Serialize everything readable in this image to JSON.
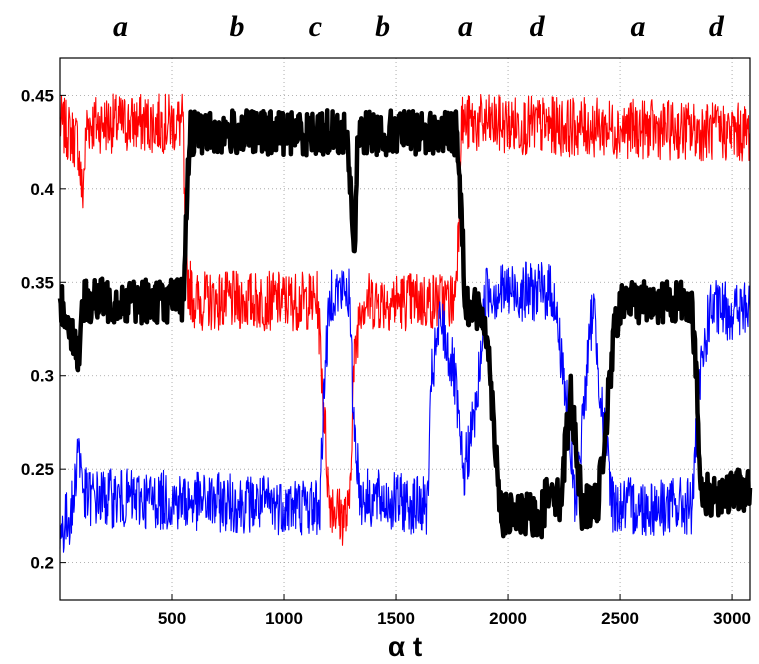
{
  "chart_data": {
    "type": "line",
    "title": "",
    "xlabel": "α t",
    "ylabel": "",
    "xlim": [
      0,
      3080
    ],
    "ylim": [
      0.18,
      0.47
    ],
    "grid": true,
    "x_ticks": [
      500,
      1000,
      1500,
      2000,
      2500,
      3000
    ],
    "y_ticks": [
      0.2,
      0.25,
      0.3,
      0.35,
      0.4,
      0.45
    ],
    "x_tick_labels": [
      "500",
      "1000",
      "1500",
      "2000",
      "2500",
      "3000"
    ],
    "y_tick_labels": [
      "0.2",
      "0.25",
      "0.3",
      "0.35",
      "0.4",
      "0.45"
    ],
    "phase_labels": [
      {
        "text": "a",
        "x": 270
      },
      {
        "text": "b",
        "x": 790
      },
      {
        "text": "c",
        "x": 1140
      },
      {
        "text": "b",
        "x": 1440
      },
      {
        "text": "a",
        "x": 1810
      },
      {
        "text": "d",
        "x": 2130
      },
      {
        "text": "a",
        "x": 2580
      },
      {
        "text": "d",
        "x": 2930
      }
    ],
    "series": [
      {
        "color": "#ff0000",
        "style": "thin",
        "values": [
          [
            0,
            0.435
          ],
          [
            80,
            0.425
          ],
          [
            100,
            0.395
          ],
          [
            120,
            0.435
          ],
          [
            550,
            0.435
          ],
          [
            560,
            0.355
          ],
          [
            600,
            0.34
          ],
          [
            1150,
            0.34
          ],
          [
            1170,
            0.3
          ],
          [
            1200,
            0.235
          ],
          [
            1250,
            0.225
          ],
          [
            1290,
            0.225
          ],
          [
            1310,
            0.3
          ],
          [
            1340,
            0.34
          ],
          [
            1760,
            0.34
          ],
          [
            1780,
            0.38
          ],
          [
            1790,
            0.435
          ],
          [
            3080,
            0.43
          ]
        ]
      },
      {
        "color": "#0000ff",
        "style": "thin",
        "values": [
          [
            0,
            0.215
          ],
          [
            60,
            0.23
          ],
          [
            80,
            0.265
          ],
          [
            110,
            0.235
          ],
          [
            1160,
            0.23
          ],
          [
            1180,
            0.3
          ],
          [
            1210,
            0.345
          ],
          [
            1290,
            0.345
          ],
          [
            1310,
            0.28
          ],
          [
            1340,
            0.235
          ],
          [
            1640,
            0.23
          ],
          [
            1660,
            0.3
          ],
          [
            1700,
            0.33
          ],
          [
            1760,
            0.3
          ],
          [
            1800,
            0.245
          ],
          [
            1860,
            0.285
          ],
          [
            1900,
            0.345
          ],
          [
            2200,
            0.345
          ],
          [
            2250,
            0.3
          ],
          [
            2300,
            0.23
          ],
          [
            2350,
            0.3
          ],
          [
            2380,
            0.34
          ],
          [
            2420,
            0.28
          ],
          [
            2470,
            0.23
          ],
          [
            2820,
            0.23
          ],
          [
            2860,
            0.3
          ],
          [
            2900,
            0.335
          ],
          [
            3080,
            0.335
          ]
        ]
      },
      {
        "color": "#000000",
        "style": "thick",
        "values": [
          [
            0,
            0.34
          ],
          [
            50,
            0.325
          ],
          [
            80,
            0.31
          ],
          [
            110,
            0.34
          ],
          [
            550,
            0.34
          ],
          [
            565,
            0.39
          ],
          [
            580,
            0.43
          ],
          [
            1280,
            0.43
          ],
          [
            1300,
            0.395
          ],
          [
            1315,
            0.36
          ],
          [
            1330,
            0.43
          ],
          [
            1770,
            0.43
          ],
          [
            1790,
            0.39
          ],
          [
            1810,
            0.34
          ],
          [
            1900,
            0.33
          ],
          [
            1940,
            0.27
          ],
          [
            1970,
            0.225
          ],
          [
            2150,
            0.225
          ],
          [
            2190,
            0.245
          ],
          [
            2230,
            0.23
          ],
          [
            2280,
            0.29
          ],
          [
            2330,
            0.23
          ],
          [
            2400,
            0.23
          ],
          [
            2450,
            0.29
          ],
          [
            2480,
            0.33
          ],
          [
            2520,
            0.34
          ],
          [
            2820,
            0.34
          ],
          [
            2840,
            0.3
          ],
          [
            2860,
            0.235
          ],
          [
            3080,
            0.24
          ]
        ]
      }
    ]
  }
}
